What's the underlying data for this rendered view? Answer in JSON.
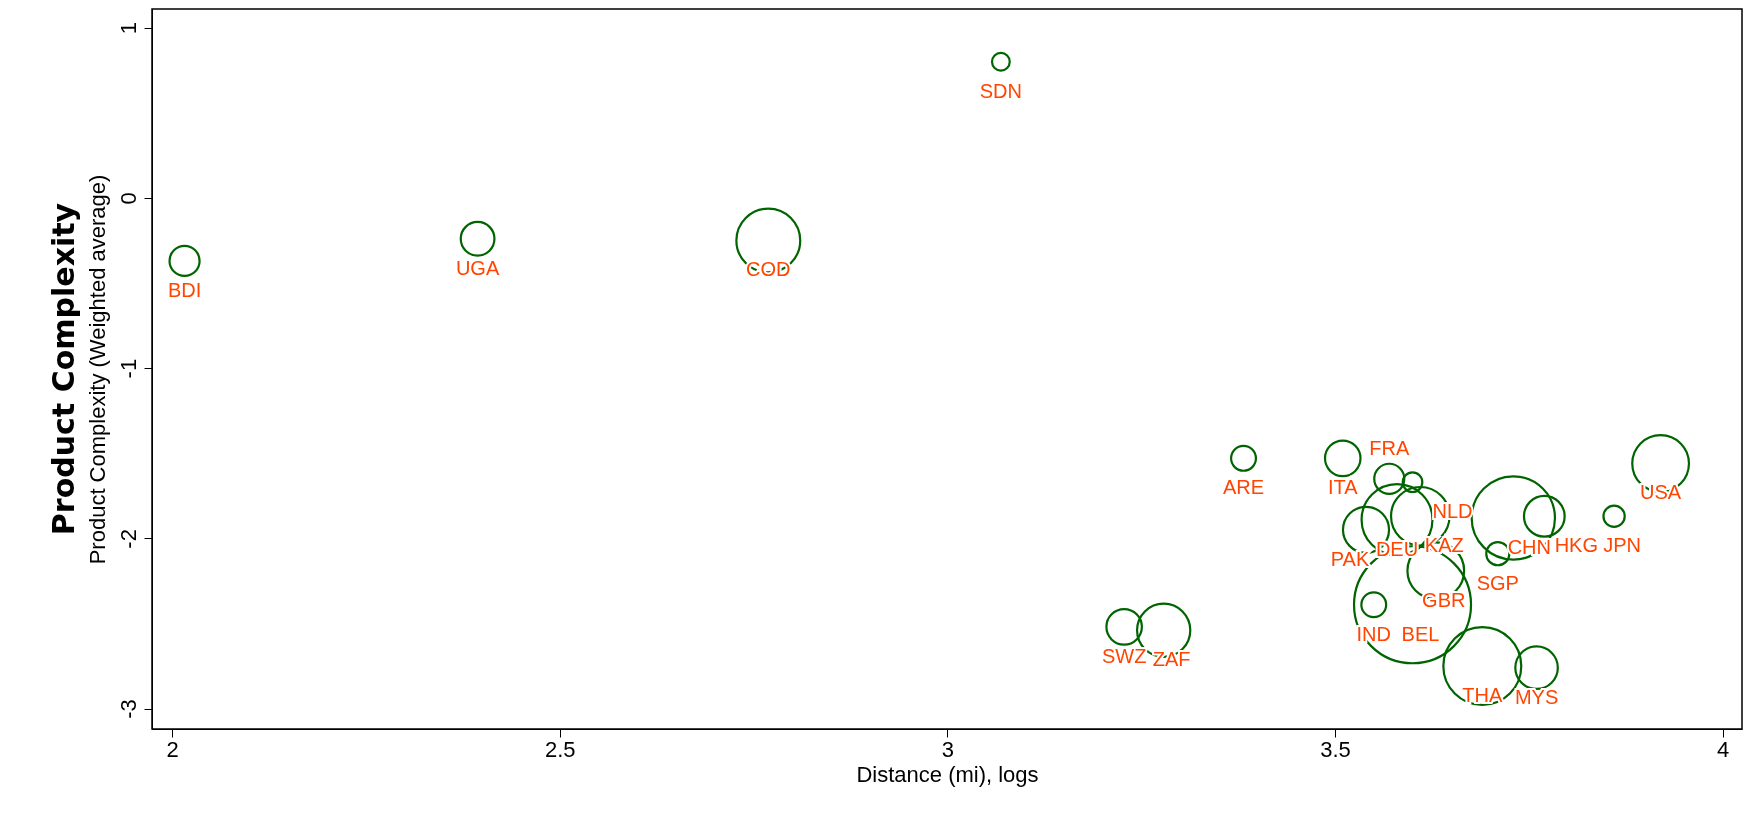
{
  "chart_data": {
    "type": "bubble",
    "title": "Product Complexity",
    "xlabel": "Distance (mi), logs",
    "ylabel": "Product Complexity (Weighted average)",
    "xlim": [
      1.974,
      4.025
    ],
    "ylim": [
      -3.12,
      1.11
    ],
    "xticks": [
      2,
      2.5,
      3,
      3.5,
      4
    ],
    "yticks": [
      -3,
      -2,
      -1,
      0,
      1
    ],
    "grid": false,
    "marker": "circle",
    "series": [
      {
        "color": "#006400",
        "x": [
          2.016,
          2.394,
          2.769,
          3.069,
          3.228,
          3.279,
          3.382,
          3.51,
          3.57,
          3.6,
          3.58,
          3.61,
          3.54,
          3.63,
          3.55,
          3.6,
          3.71,
          3.73,
          3.77,
          3.86,
          3.69,
          3.76,
          3.92
        ],
        "values": [
          -0.37,
          -0.24,
          -0.25,
          0.8,
          -2.52,
          -2.54,
          -1.53,
          -1.53,
          -1.65,
          -1.67,
          -1.89,
          -1.87,
          -1.95,
          -2.19,
          -2.39,
          -2.39,
          -2.09,
          -1.88,
          -1.87,
          -1.87,
          -2.75,
          -2.76,
          -1.56
        ],
        "sizes": [
          0.066,
          0.083,
          0.298,
          0.023,
          0.092,
          0.207,
          0.045,
          0.092,
          0.066,
          0.028,
          0.367,
          0.25,
          0.155,
          0.235,
          0.045,
          1,
          0.039,
          0.507,
          0.121,
          0.033,
          0.444,
          0.132,
          0.235
        ],
        "value_labels": [
          "BDI",
          "UGA",
          "COD",
          "SDN",
          "SWZ",
          "ZAF",
          "ARE",
          "ITA",
          "FRA",
          "NLD",
          "DEU",
          "KAZ",
          "PAK",
          "GBR",
          "IND",
          "BEL",
          "SGP",
          "CHN",
          "HKG",
          "JPN",
          "THA",
          "MYS",
          "USA"
        ]
      }
    ]
  }
}
